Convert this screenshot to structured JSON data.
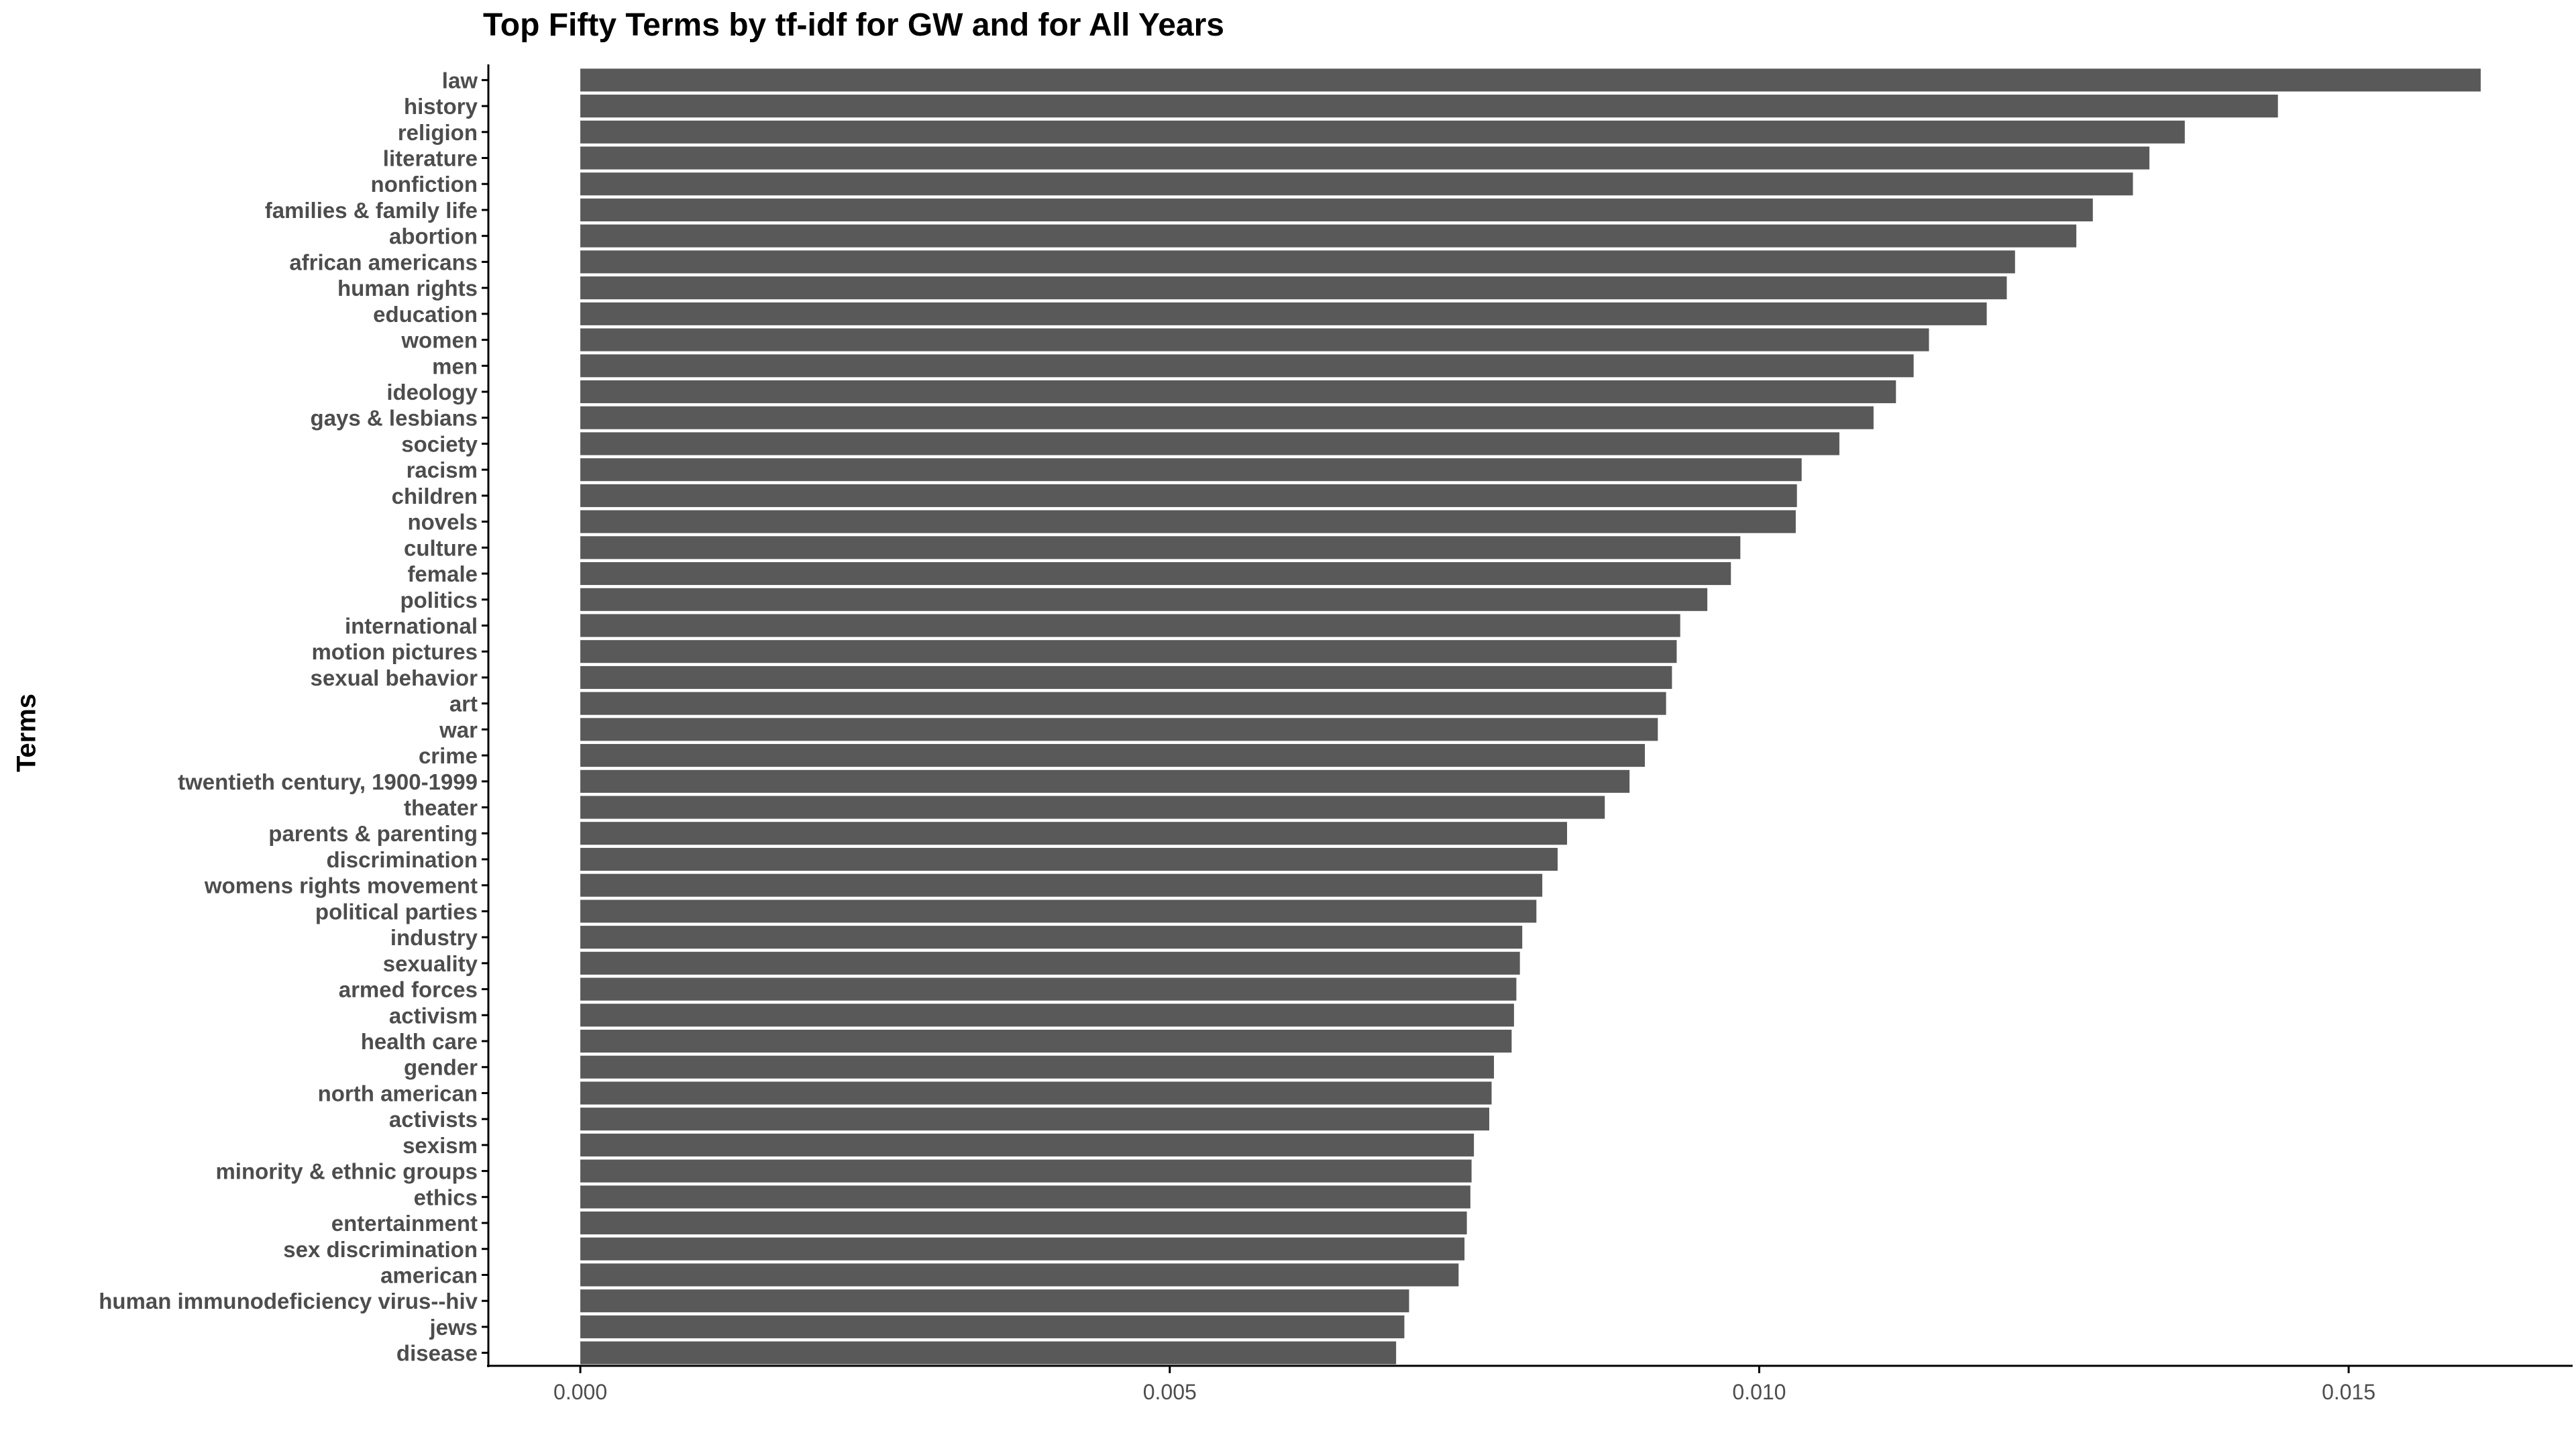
{
  "chart_data": {
    "type": "bar",
    "orientation": "horizontal",
    "title": "Top Fifty Terms by tf-idf for GW and for All Years",
    "xlabel": "",
    "ylabel": "Terms",
    "xlim": [
      -0.00078,
      0.0169
    ],
    "x_ticks": [
      "0.000",
      "0.005",
      "0.010",
      "0.015"
    ],
    "x_tick_values": [
      0.0,
      0.005,
      0.01,
      0.015
    ],
    "grid": false,
    "bar_color": "#595959",
    "categories": [
      "law",
      "history",
      "religion",
      "literature",
      "nonfiction",
      "families & family life",
      "abortion",
      "african americans",
      "human rights",
      "education",
      "women",
      "men",
      "ideology",
      "gays & lesbians",
      "society",
      "racism",
      "children",
      "novels",
      "culture",
      "female",
      "politics",
      "international",
      "motion pictures",
      "sexual behavior",
      "art",
      "war",
      "crime",
      "twentieth century, 1900-1999",
      "theater",
      "parents & parenting",
      "discrimination",
      "womens rights movement",
      "political parties",
      "industry",
      "sexuality",
      "armed forces",
      "activism",
      "health care",
      "gender",
      "north american",
      "activists",
      "sexism",
      "minority & ethnic groups",
      "ethics",
      "entertainment",
      "sex discrimination",
      "american",
      "human immunodeficiency virus--hiv",
      "jews",
      "disease"
    ],
    "values": [
      0.01612,
      0.0144,
      0.01361,
      0.01331,
      0.01317,
      0.01283,
      0.01269,
      0.01217,
      0.0121,
      0.01193,
      0.01144,
      0.01131,
      0.01116,
      0.01097,
      0.01068,
      0.01036,
      0.01032,
      0.01031,
      0.00984,
      0.00976,
      0.00956,
      0.00933,
      0.0093,
      0.00926,
      0.00921,
      0.00914,
      0.00903,
      0.0089,
      0.00869,
      0.00837,
      0.00829,
      0.00816,
      0.00811,
      0.00799,
      0.00797,
      0.00794,
      0.00792,
      0.0079,
      0.00775,
      0.00773,
      0.00771,
      0.00758,
      0.00756,
      0.00755,
      0.00752,
      0.0075,
      0.00745,
      0.00703,
      0.00699,
      0.00692
    ]
  }
}
